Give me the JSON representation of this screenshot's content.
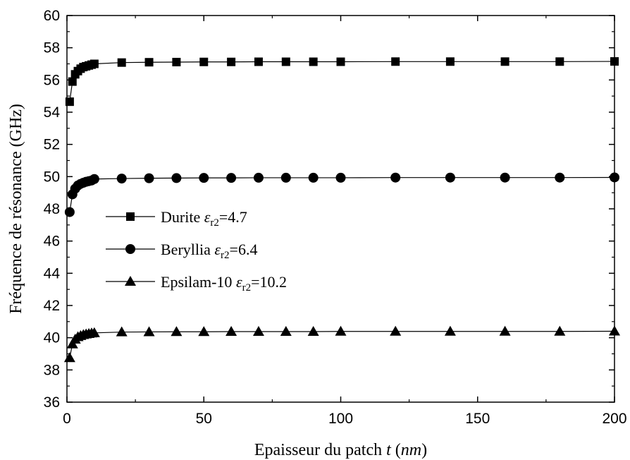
{
  "chart_data": {
    "type": "line",
    "xlabel": {
      "text": "Epaisseur du patch",
      "var": "t",
      "unit": "nm"
    },
    "ylabel": "Fréquence de résonance (GHz)",
    "xlim": [
      0,
      200
    ],
    "ylim": [
      36,
      60
    ],
    "xticks": [
      0,
      50,
      100,
      150,
      200
    ],
    "yticks": [
      36,
      38,
      40,
      42,
      44,
      46,
      48,
      50,
      52,
      54,
      56,
      58,
      60
    ],
    "grid": false,
    "legend_position": "left-center",
    "x": [
      1,
      2,
      3,
      4,
      5,
      6,
      7,
      8,
      9,
      10,
      20,
      30,
      40,
      50,
      60,
      70,
      80,
      90,
      100,
      120,
      140,
      160,
      180,
      200
    ],
    "series": [
      {
        "name": "Durite",
        "symbol": "εr2",
        "eps_value": "=4.7",
        "marker": "square",
        "values": [
          54.65,
          55.9,
          56.35,
          56.55,
          56.7,
          56.8,
          56.85,
          56.9,
          56.95,
          57.0,
          57.08,
          57.1,
          57.11,
          57.12,
          57.12,
          57.13,
          57.13,
          57.13,
          57.13,
          57.14,
          57.14,
          57.14,
          57.14,
          57.15
        ]
      },
      {
        "name": "Beryllia",
        "symbol": "εr2",
        "eps_value": "=6.4",
        "marker": "circle",
        "values": [
          47.8,
          48.9,
          49.25,
          49.45,
          49.55,
          49.62,
          49.68,
          49.72,
          49.76,
          49.85,
          49.88,
          49.9,
          49.91,
          49.92,
          49.92,
          49.93,
          49.93,
          49.93,
          49.93,
          49.94,
          49.94,
          49.94,
          49.94,
          49.95
        ]
      },
      {
        "name": "Epsilam-10",
        "symbol": "εr2",
        "eps_value": "=10.2",
        "marker": "triangle",
        "values": [
          38.75,
          39.6,
          39.9,
          40.05,
          40.12,
          40.18,
          40.22,
          40.25,
          40.28,
          40.3,
          40.35,
          40.36,
          40.37,
          40.37,
          40.38,
          40.38,
          40.38,
          40.38,
          40.39,
          40.39,
          40.39,
          40.39,
          40.39,
          40.4
        ]
      }
    ]
  }
}
